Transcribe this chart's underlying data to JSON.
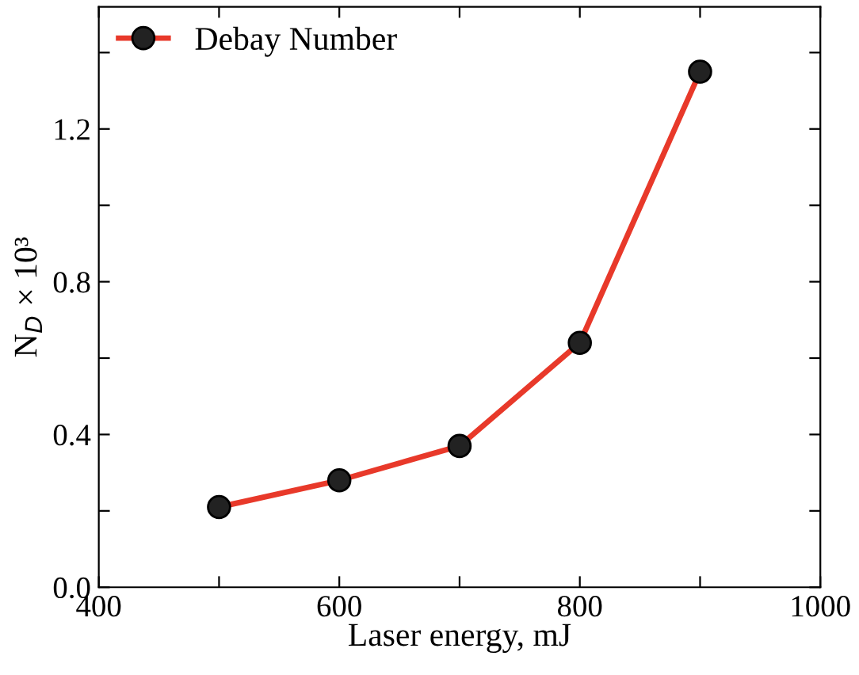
{
  "chart_data": {
    "type": "line",
    "xlabel": "Laser energy, mJ",
    "ylabel": "N$_{D}$ × 10³",
    "x": [
      500,
      600,
      700,
      800,
      900
    ],
    "series": [
      {
        "name": "Debay Number",
        "color": "#e8392a",
        "values": [
          0.21,
          0.28,
          0.37,
          0.64,
          1.35
        ]
      }
    ],
    "xlim": [
      400,
      1000
    ],
    "ylim": [
      0,
      1.52
    ],
    "xticks": [
      400,
      {
        "value": 500,
        "label": null
      },
      600,
      {
        "value": 700,
        "label": null
      },
      800,
      {
        "value": 900,
        "label": null
      },
      1000
    ],
    "yticks": [
      {
        "value": 0,
        "label": "0.0"
      },
      {
        "value": 0.2,
        "label": null
      },
      0.4,
      {
        "value": 0.6,
        "label": null
      },
      0.8,
      {
        "value": 1.0,
        "label": null
      },
      1.2,
      {
        "value": 1.4,
        "label": null
      }
    ],
    "marker": "circle",
    "line_style": "solid",
    "legend": "top left",
    "grid": false
  }
}
